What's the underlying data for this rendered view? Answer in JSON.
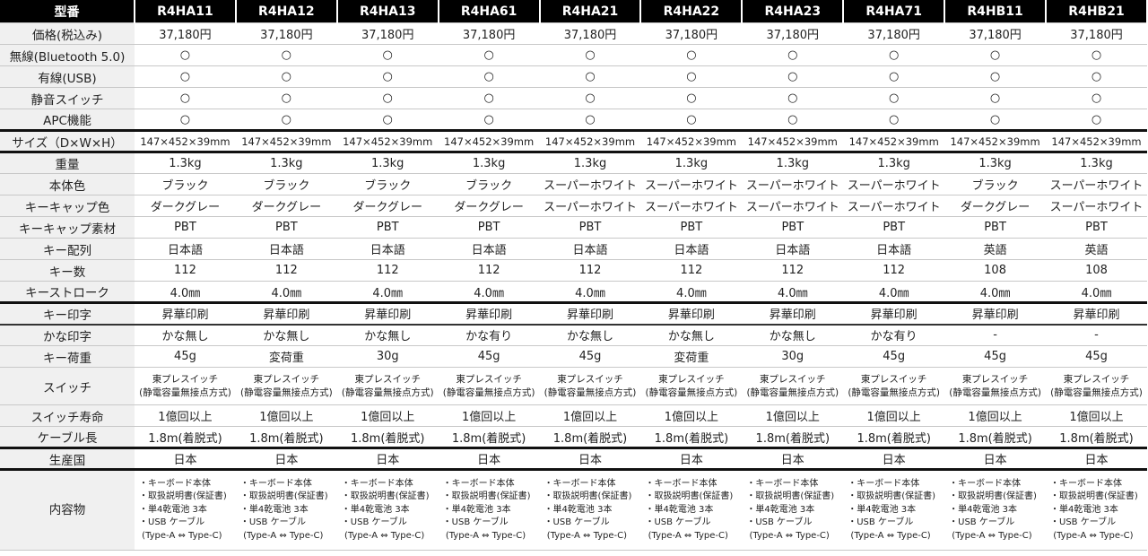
{
  "header": {
    "label": "型番",
    "models": [
      "R4HA11",
      "R4HA12",
      "R4HA13",
      "R4HA61",
      "R4HA21",
      "R4HA22",
      "R4HA23",
      "R4HA71",
      "R4HB11",
      "R4HB21"
    ]
  },
  "rows": [
    {
      "label": "価格(税込み)",
      "values": [
        "37,180円",
        "37,180円",
        "37,180円",
        "37,180円",
        "37,180円",
        "37,180円",
        "37,180円",
        "37,180円",
        "37,180円",
        "37,180円"
      ]
    },
    {
      "label": "無線(Bluetooth 5.0)",
      "values": [
        "○",
        "○",
        "○",
        "○",
        "○",
        "○",
        "○",
        "○",
        "○",
        "○"
      ]
    },
    {
      "label": "有線(USB)",
      "values": [
        "○",
        "○",
        "○",
        "○",
        "○",
        "○",
        "○",
        "○",
        "○",
        "○"
      ]
    },
    {
      "label": "静音スイッチ",
      "values": [
        "○",
        "○",
        "○",
        "○",
        "○",
        "○",
        "○",
        "○",
        "○",
        "○"
      ]
    },
    {
      "label": "APC機能",
      "values": [
        "○",
        "○",
        "○",
        "○",
        "○",
        "○",
        "○",
        "○",
        "○",
        "○"
      ]
    },
    {
      "label": "サイズ（D×W×H）",
      "values": [
        "147×452×39mm",
        "147×452×39mm",
        "147×452×39mm",
        "147×452×39mm",
        "147×452×39mm",
        "147×452×39mm",
        "147×452×39mm",
        "147×452×39mm",
        "147×452×39mm",
        "147×452×39mm"
      ]
    },
    {
      "label": "重量",
      "values": [
        "1.3kg",
        "1.3kg",
        "1.3kg",
        "1.3kg",
        "1.3kg",
        "1.3kg",
        "1.3kg",
        "1.3kg",
        "1.3kg",
        "1.3kg"
      ]
    },
    {
      "label": "本体色",
      "values": [
        "ブラック",
        "ブラック",
        "ブラック",
        "ブラック",
        "スーパーホワイト",
        "スーパーホワイト",
        "スーパーホワイト",
        "スーパーホワイト",
        "ブラック",
        "スーパーホワイト"
      ]
    },
    {
      "label": "キーキャップ色",
      "values": [
        "ダークグレー",
        "ダークグレー",
        "ダークグレー",
        "ダークグレー",
        "スーパーホワイト",
        "スーパーホワイト",
        "スーパーホワイト",
        "スーパーホワイト",
        "ダークグレー",
        "スーパーホワイト"
      ]
    },
    {
      "label": "キーキャップ素材",
      "values": [
        "PBT",
        "PBT",
        "PBT",
        "PBT",
        "PBT",
        "PBT",
        "PBT",
        "PBT",
        "PBT",
        "PBT"
      ]
    },
    {
      "label": "キー配列",
      "values": [
        "日本語",
        "日本語",
        "日本語",
        "日本語",
        "日本語",
        "日本語",
        "日本語",
        "日本語",
        "英語",
        "英語"
      ]
    },
    {
      "label": "キー数",
      "values": [
        "112",
        "112",
        "112",
        "112",
        "112",
        "112",
        "112",
        "112",
        "108",
        "108"
      ]
    },
    {
      "label": "キーストローク",
      "values": [
        "4.0㎜",
        "4.0㎜",
        "4.0㎜",
        "4.0㎜",
        "4.0㎜",
        "4.0㎜",
        "4.0㎜",
        "4.0㎜",
        "4.0㎜",
        "4.0㎜"
      ]
    },
    {
      "label": "キー印字",
      "values": [
        "昇華印刷",
        "昇華印刷",
        "昇華印刷",
        "昇華印刷",
        "昇華印刷",
        "昇華印刷",
        "昇華印刷",
        "昇華印刷",
        "昇華印刷",
        "昇華印刷"
      ]
    },
    {
      "label": "かな印字",
      "values": [
        "かな無し",
        "かな無し",
        "かな無し",
        "かな有り",
        "かな無し",
        "かな無し",
        "かな無し",
        "かな有り",
        "-",
        "-"
      ]
    },
    {
      "label": "キー荷重",
      "values": [
        "45g",
        "変荷重",
        "30g",
        "45g",
        "45g",
        "変荷重",
        "30g",
        "45g",
        "45g",
        "45g"
      ]
    },
    {
      "label": "スイッチ",
      "values": [
        "東プレスイッチ\n(静電容量無接点方式)",
        "東プレスイッチ\n(静電容量無接点方式)",
        "東プレスイッチ\n(静電容量無接点方式)",
        "東プレスイッチ\n(静電容量無接点方式)",
        "東プレスイッチ\n(静電容量無接点方式)",
        "東プレスイッチ\n(静電容量無接点方式)",
        "東プレスイッチ\n(静電容量無接点方式)",
        "東プレスイッチ\n(静電容量無接点方式)",
        "東プレスイッチ\n(静電容量無接点方式)",
        "東プレスイッチ\n(静電容量無接点方式)"
      ]
    },
    {
      "label": "スイッチ寿命",
      "values": [
        "1億回以上",
        "1億回以上",
        "1億回以上",
        "1億回以上",
        "1億回以上",
        "1億回以上",
        "1億回以上",
        "1億回以上",
        "1億回以上",
        "1億回以上"
      ]
    },
    {
      "label": "ケーブル長",
      "values": [
        "1.8m(着脱式)",
        "1.8m(着脱式)",
        "1.8m(着脱式)",
        "1.8m(着脱式)",
        "1.8m(着脱式)",
        "1.8m(着脱式)",
        "1.8m(着脱式)",
        "1.8m(着脱式)",
        "1.8m(着脱式)",
        "1.8m(着脱式)"
      ]
    },
    {
      "label": "生産国",
      "values": [
        "日本",
        "日本",
        "日本",
        "日本",
        "日本",
        "日本",
        "日本",
        "日本",
        "日本",
        "日本"
      ]
    },
    {
      "label": "内容物",
      "values": [
        "・キーボード本体\n・取扱説明書(保証書)\n・単4乾電池 3本\n・USB ケーブル\n (Type-A ⇔ Type-C)",
        "・キーボード本体\n・取扱説明書(保証書)\n・単4乾電池 3本\n・USB ケーブル\n (Type-A ⇔ Type-C)",
        "・キーボード本体\n・取扱説明書(保証書)\n・単4乾電池 3本\n・USB ケーブル\n (Type-A ⇔ Type-C)",
        "・キーボード本体\n・取扱説明書(保証書)\n・単4乾電池 3本\n・USB ケーブル\n (Type-A ⇔ Type-C)",
        "・キーボード本体\n・取扱説明書(保証書)\n・単4乾電池 3本\n・USB ケーブル\n (Type-A ⇔ Type-C)",
        "・キーボード本体\n・取扱説明書(保証書)\n・単4乾電池 3本\n・USB ケーブル\n (Type-A ⇔ Type-C)",
        "・キーボード本体\n・取扱説明書(保証書)\n・単4乾電池 3本\n・USB ケーブル\n (Type-A ⇔ Type-C)",
        "・キーボード本体\n・取扱説明書(保証書)\n・単4乾電池 3本\n・USB ケーブル\n (Type-A ⇔ Type-C)",
        "・キーボード本体\n・取扱説明書(保証書)\n・単4乾電池 3本\n・USB ケーブル\n (Type-A ⇔ Type-C)",
        "・キーボード本体\n・取扱説明書(保証書)\n・単4乾電池 3本\n・USB ケーブル\n (Type-A ⇔ Type-C)"
      ]
    }
  ]
}
